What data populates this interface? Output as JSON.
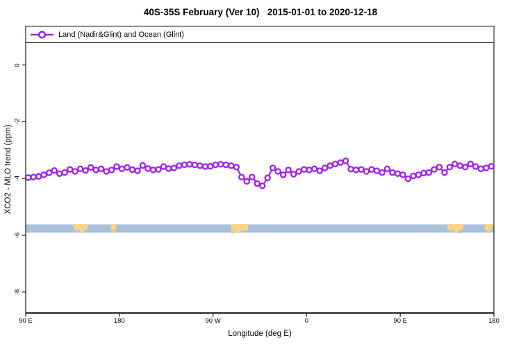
{
  "window": {
    "background": "#ffffff",
    "frame_color": "#2a2a2a"
  },
  "header": {
    "title": "40S-35S February (Ver 10)   2015-01-01 to 2020-12-18"
  },
  "legend": {
    "entries": [
      {
        "label": "Land (Nadir&Glint) and Ocean (Glint)",
        "color": "#A020F0",
        "marker": "open-circle-on-line"
      }
    ]
  },
  "chart_data": {
    "type": "line",
    "title": "40S-35S February (Ver 10)   2015-01-01 to 2020-12-18",
    "xlabel": "Longitude (deg E)",
    "ylabel": "XCO2 - MLO trend (ppm)",
    "xlim": [
      90,
      540
    ],
    "ylim": [
      -8.74,
      1.36
    ],
    "grid": false,
    "legend_position": "top-left, full-width box inside plot",
    "x_ticks": [
      {
        "value": 90,
        "label": "90 E"
      },
      {
        "value": 180,
        "label": "180"
      },
      {
        "value": 270,
        "label": "90 W"
      },
      {
        "value": 360,
        "label": "0"
      },
      {
        "value": 450,
        "label": "90 E"
      },
      {
        "value": 540,
        "label": "180"
      }
    ],
    "y_ticks": [
      {
        "value": 0,
        "label": "0"
      },
      {
        "value": -2,
        "label": "-2"
      },
      {
        "value": -4,
        "label": "-4"
      },
      {
        "value": -6,
        "label": "-6"
      },
      {
        "value": -8,
        "label": "-8"
      }
    ],
    "series": [
      {
        "name": "Land (Nadir&Glint) and Ocean (Glint)",
        "color": "#A020F0",
        "marker": "open-circle",
        "x_start": 92.5,
        "x_step": 5,
        "values": [
          -3.97,
          -3.95,
          -3.93,
          -3.87,
          -3.8,
          -3.72,
          -3.83,
          -3.79,
          -3.68,
          -3.75,
          -3.66,
          -3.72,
          -3.61,
          -3.7,
          -3.66,
          -3.75,
          -3.7,
          -3.58,
          -3.66,
          -3.61,
          -3.69,
          -3.73,
          -3.54,
          -3.65,
          -3.7,
          -3.68,
          -3.58,
          -3.65,
          -3.63,
          -3.55,
          -3.52,
          -3.5,
          -3.52,
          -3.55,
          -3.58,
          -3.57,
          -3.52,
          -3.5,
          -3.52,
          -3.55,
          -3.6,
          -3.95,
          -4.1,
          -3.95,
          -4.18,
          -4.26,
          -3.98,
          -3.63,
          -3.75,
          -3.87,
          -3.7,
          -3.85,
          -3.75,
          -3.68,
          -3.7,
          -3.66,
          -3.73,
          -3.63,
          -3.55,
          -3.49,
          -3.44,
          -3.38,
          -3.67,
          -3.7,
          -3.68,
          -3.75,
          -3.68,
          -3.73,
          -3.79,
          -3.66,
          -3.79,
          -3.83,
          -3.87,
          -4.01,
          -3.91,
          -3.87,
          -3.81,
          -3.79,
          -3.68,
          -3.6,
          -3.79,
          -3.6,
          -3.49,
          -3.55,
          -3.6,
          -3.49,
          -3.58,
          -3.66,
          -3.63,
          -3.57
        ]
      }
    ],
    "map_strip": {
      "description": "ocean/land map strip of the 40S-35S latitude band",
      "ocean_color": "#AAC1DE",
      "land_color": "#FBD585",
      "y_value_range": [
        -5.62,
        -5.91
      ],
      "land_patches": [
        {
          "name": "australia",
          "rects": [
            [
              106,
              323,
              20,
              8
            ],
            [
              109,
              331,
              4,
              2
            ],
            [
              115,
              331,
              7,
              3
            ],
            [
              123,
              331,
              2,
              1
            ],
            [
              103,
              324,
              2,
              2
            ]
          ]
        },
        {
          "name": "new-zealand",
          "rects": [
            [
              160,
              323,
              7,
              8
            ],
            [
              162,
              331,
              3,
              5
            ]
          ]
        },
        {
          "name": "south-america",
          "rects": [
            [
              333,
              323,
              24,
              9
            ],
            [
              333,
              332,
              3,
              5
            ],
            [
              338,
              332,
              9,
              2
            ],
            [
              349,
              332,
              5,
              1
            ]
          ]
        },
        {
          "name": "australia-repeat",
          "rects": [
            [
              644,
              323,
              23,
              8
            ],
            [
              647,
              331,
              4,
              2
            ],
            [
              653,
              331,
              7,
              3
            ],
            [
              661,
              335,
              3,
              2
            ]
          ]
        },
        {
          "name": "new-zealand-repeat",
          "rects": [
            [
              698,
              323,
              11,
              9
            ],
            [
              702,
              332,
              3,
              4
            ],
            [
              706,
              330,
              2,
              2
            ]
          ]
        }
      ]
    }
  }
}
